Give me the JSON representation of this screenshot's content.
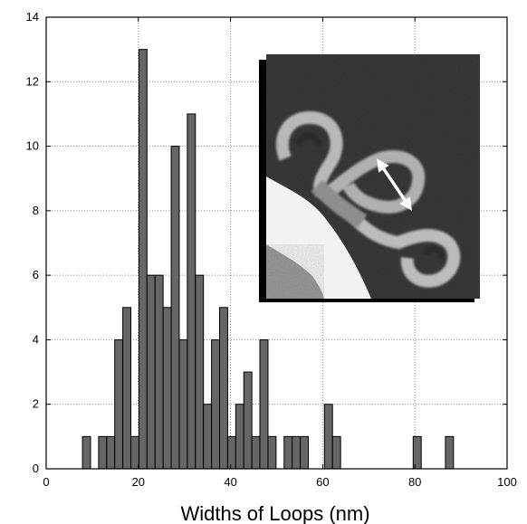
{
  "chart_data": {
    "type": "bar",
    "title": "",
    "xlabel": "Widths of Loops (nm)",
    "ylabel": "",
    "xlim": [
      0,
      100
    ],
    "ylim": [
      0,
      14
    ],
    "grid": true,
    "grid_style": "dotted",
    "bar_color": "#666666",
    "bar_edge_color": "#000000",
    "bin_width": 1.75,
    "x_ticks": [
      0,
      20,
      40,
      60,
      80,
      100
    ],
    "y_ticks": [
      0,
      2,
      4,
      6,
      8,
      10,
      12,
      14
    ],
    "x_tick_labels": [
      "0",
      "20",
      "40",
      "60",
      "80",
      "100"
    ],
    "y_tick_labels": [
      "0",
      "2",
      "4",
      "6",
      "8",
      "10",
      "12",
      "14"
    ],
    "bins": [
      {
        "x": 8.75,
        "count": 1
      },
      {
        "x": 12.25,
        "count": 1
      },
      {
        "x": 14.0,
        "count": 1
      },
      {
        "x": 15.75,
        "count": 4
      },
      {
        "x": 17.5,
        "count": 5
      },
      {
        "x": 19.25,
        "count": 1
      },
      {
        "x": 21.0,
        "count": 13
      },
      {
        "x": 22.75,
        "count": 6
      },
      {
        "x": 24.5,
        "count": 6
      },
      {
        "x": 26.25,
        "count": 5
      },
      {
        "x": 28.0,
        "count": 10
      },
      {
        "x": 29.75,
        "count": 4
      },
      {
        "x": 31.5,
        "count": 11
      },
      {
        "x": 33.25,
        "count": 6
      },
      {
        "x": 35.0,
        "count": 2
      },
      {
        "x": 36.75,
        "count": 4
      },
      {
        "x": 38.5,
        "count": 5
      },
      {
        "x": 40.25,
        "count": 1
      },
      {
        "x": 42.0,
        "count": 2
      },
      {
        "x": 43.75,
        "count": 3
      },
      {
        "x": 45.5,
        "count": 1
      },
      {
        "x": 47.25,
        "count": 4
      },
      {
        "x": 49.0,
        "count": 1
      },
      {
        "x": 52.5,
        "count": 1
      },
      {
        "x": 54.25,
        "count": 1
      },
      {
        "x": 56.0,
        "count": 1
      },
      {
        "x": 61.25,
        "count": 2
      },
      {
        "x": 63.0,
        "count": 1
      },
      {
        "x": 80.5,
        "count": 1
      },
      {
        "x": 87.5,
        "count": 1
      }
    ]
  },
  "inset": {
    "description_icon": "afm-micrograph-inset",
    "arrow_icon": "double-headed-arrow-icon",
    "colors": {
      "background": "#3a3a3a",
      "bright_region": "#f4f4f4",
      "loop_texture": "#b8b8b8",
      "arrow": "#ffffff",
      "shadow": "#000000"
    }
  }
}
